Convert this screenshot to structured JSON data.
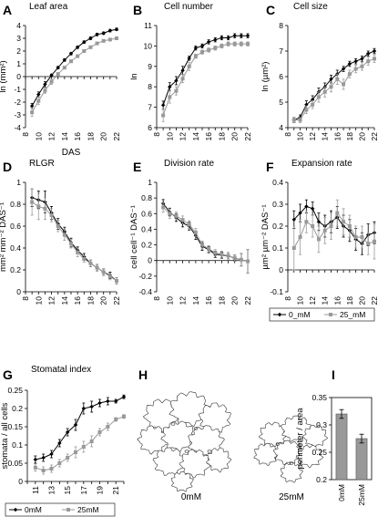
{
  "chart_data": [
    {
      "id": "A",
      "type": "line",
      "panel_letter": "A",
      "title": "Leaf area",
      "xlabel": "DAS",
      "ylabel": "ln (mm²)",
      "xlim": [
        8,
        22
      ],
      "ylim": [
        -4,
        4
      ],
      "xticks": [
        8,
        10,
        12,
        14,
        16,
        18,
        20,
        22
      ],
      "yticks": [
        -4,
        -3,
        -2,
        -1,
        0,
        1,
        2,
        3,
        4
      ],
      "series": [
        {
          "name": "0_mM",
          "x": [
            9,
            10,
            11,
            12,
            13,
            14,
            15,
            16,
            17,
            18,
            19,
            20,
            21,
            22
          ],
          "y": [
            -2.3,
            -1.4,
            -0.6,
            0.1,
            0.7,
            1.3,
            1.8,
            2.3,
            2.7,
            3.0,
            3.3,
            3.4,
            3.6,
            3.7
          ],
          "err": [
            0.2,
            0.2,
            0.2,
            0.1,
            0.1,
            0.1,
            0.1,
            0.1,
            0.1,
            0.1,
            0.1,
            0.1,
            0.1,
            0.1
          ]
        },
        {
          "name": "25_mM",
          "x": [
            9,
            10,
            11,
            12,
            13,
            14,
            15,
            16,
            17,
            18,
            19,
            20,
            21,
            22
          ],
          "y": [
            -2.8,
            -1.9,
            -1.1,
            -0.4,
            0.2,
            0.7,
            1.2,
            1.6,
            2.0,
            2.3,
            2.6,
            2.8,
            2.9,
            3.0
          ],
          "err": [
            0.3,
            0.3,
            0.2,
            0.2,
            0.1,
            0.1,
            0.1,
            0.1,
            0.1,
            0.1,
            0.1,
            0.1,
            0.1,
            0.1
          ]
        }
      ]
    },
    {
      "id": "B",
      "type": "line",
      "panel_letter": "B",
      "title": "Cell number",
      "xlabel": "",
      "ylabel": "ln",
      "xlim": [
        8,
        22
      ],
      "ylim": [
        6,
        11
      ],
      "xticks": [
        8,
        10,
        12,
        14,
        16,
        18,
        20,
        22
      ],
      "yticks": [
        6,
        7,
        8,
        9,
        10,
        11
      ],
      "series": [
        {
          "name": "0_mM",
          "x": [
            9,
            10,
            11,
            12,
            13,
            14,
            15,
            16,
            17,
            18,
            19,
            20,
            21,
            22
          ],
          "y": [
            7.1,
            8.0,
            8.3,
            8.8,
            9.4,
            9.9,
            10.0,
            10.2,
            10.3,
            10.4,
            10.4,
            10.5,
            10.5,
            10.5
          ],
          "err": [
            0.2,
            0.2,
            0.2,
            0.2,
            0.1,
            0.1,
            0.1,
            0.1,
            0.1,
            0.1,
            0.1,
            0.1,
            0.1,
            0.1
          ]
        },
        {
          "name": "25_mM",
          "x": [
            9,
            10,
            11,
            12,
            13,
            14,
            15,
            16,
            17,
            18,
            19,
            20,
            21,
            22
          ],
          "y": [
            6.6,
            7.5,
            7.8,
            8.4,
            9.0,
            9.5,
            9.7,
            9.8,
            9.9,
            10.0,
            10.1,
            10.1,
            10.1,
            10.1
          ],
          "err": [
            0.3,
            0.3,
            0.2,
            0.2,
            0.2,
            0.1,
            0.1,
            0.1,
            0.1,
            0.1,
            0.1,
            0.1,
            0.1,
            0.1
          ]
        }
      ]
    },
    {
      "id": "C",
      "type": "line",
      "panel_letter": "C",
      "title": "Cell size",
      "xlabel": "",
      "ylabel": "ln (µm²)",
      "xlim": [
        8,
        22
      ],
      "ylim": [
        4,
        8
      ],
      "xticks": [
        8,
        10,
        12,
        14,
        16,
        18,
        20,
        22
      ],
      "yticks": [
        4,
        5,
        6,
        7,
        8
      ],
      "series": [
        {
          "name": "0_mM",
          "x": [
            9,
            10,
            11,
            12,
            13,
            14,
            15,
            16,
            17,
            18,
            19,
            20,
            21,
            22
          ],
          "y": [
            4.3,
            4.4,
            4.9,
            5.1,
            5.4,
            5.6,
            5.9,
            6.1,
            6.3,
            6.5,
            6.6,
            6.7,
            6.9,
            7.0
          ],
          "err": [
            0.1,
            0.1,
            0.15,
            0.15,
            0.15,
            0.15,
            0.15,
            0.15,
            0.1,
            0.1,
            0.1,
            0.1,
            0.1,
            0.1
          ]
        },
        {
          "name": "25_mM",
          "x": [
            9,
            10,
            11,
            12,
            13,
            14,
            15,
            16,
            17,
            18,
            19,
            20,
            21,
            22
          ],
          "y": [
            4.3,
            4.3,
            4.7,
            4.9,
            5.2,
            5.4,
            5.6,
            5.9,
            5.7,
            6.1,
            6.3,
            6.4,
            6.6,
            6.7
          ],
          "err": [
            0.1,
            0.1,
            0.15,
            0.15,
            0.2,
            0.2,
            0.2,
            0.2,
            0.2,
            0.15,
            0.15,
            0.15,
            0.15,
            0.15
          ]
        }
      ]
    },
    {
      "id": "D",
      "type": "line",
      "panel_letter": "D",
      "title": "RLGR",
      "xlabel": "",
      "ylabel": "mm² mm⁻² DAS⁻¹",
      "xlim": [
        8,
        22
      ],
      "ylim": [
        0,
        1
      ],
      "xticks": [
        8,
        10,
        12,
        14,
        16,
        18,
        20,
        22
      ],
      "yticks": [
        0,
        0.2,
        0.4,
        0.6,
        0.8,
        1
      ],
      "series": [
        {
          "name": "0_mM",
          "x": [
            9,
            10,
            11,
            12,
            13,
            14,
            15,
            16,
            17,
            18,
            19,
            20,
            21,
            22
          ],
          "y": [
            0.86,
            0.84,
            0.82,
            0.72,
            0.62,
            0.55,
            0.45,
            0.38,
            0.32,
            0.26,
            0.22,
            0.18,
            0.15,
            0.1
          ],
          "err": [
            0.08,
            0.08,
            0.1,
            0.06,
            0.05,
            0.04,
            0.04,
            0.03,
            0.03,
            0.03,
            0.03,
            0.03,
            0.03,
            0.03
          ]
        },
        {
          "name": "25_mM",
          "x": [
            9,
            10,
            11,
            12,
            13,
            14,
            15,
            16,
            17,
            18,
            19,
            20,
            21,
            22
          ],
          "y": [
            0.82,
            0.78,
            0.76,
            0.7,
            0.6,
            0.52,
            0.44,
            0.36,
            0.3,
            0.26,
            0.22,
            0.18,
            0.14,
            0.1
          ],
          "err": [
            0.12,
            0.12,
            0.1,
            0.06,
            0.05,
            0.05,
            0.04,
            0.04,
            0.03,
            0.03,
            0.03,
            0.03,
            0.03,
            0.03
          ]
        }
      ]
    },
    {
      "id": "E",
      "type": "line",
      "panel_letter": "E",
      "title": "Division rate",
      "xlabel": "",
      "ylabel": "cell cell⁻¹ DAS⁻¹",
      "xlim": [
        8,
        22
      ],
      "ylim": [
        -0.4,
        1
      ],
      "xticks": [
        8,
        10,
        12,
        14,
        16,
        18,
        20,
        22
      ],
      "yticks": [
        -0.4,
        -0.2,
        0,
        0.2,
        0.4,
        0.6,
        0.8,
        1
      ],
      "series": [
        {
          "name": "0_mM",
          "x": [
            9,
            10,
            11,
            12,
            13,
            14,
            15,
            16,
            17,
            18,
            19,
            20,
            21,
            22
          ],
          "y": [
            0.73,
            0.62,
            0.55,
            0.48,
            0.44,
            0.32,
            0.18,
            0.14,
            0.08,
            0.07,
            0.06,
            0.03,
            0.01,
            -0.01
          ],
          "err": [
            0.05,
            0.05,
            0.05,
            0.05,
            0.05,
            0.05,
            0.05,
            0.04,
            0.04,
            0.04,
            0.04,
            0.04,
            0.08,
            0.15
          ]
        },
        {
          "name": "25_mM",
          "x": [
            9,
            10,
            11,
            12,
            13,
            14,
            15,
            16,
            17,
            18,
            19,
            20,
            21,
            22
          ],
          "y": [
            0.68,
            0.6,
            0.57,
            0.52,
            0.46,
            0.36,
            0.2,
            0.15,
            0.1,
            0.08,
            0.06,
            0.03,
            0.01,
            -0.01
          ],
          "err": [
            0.06,
            0.06,
            0.05,
            0.05,
            0.05,
            0.05,
            0.05,
            0.04,
            0.04,
            0.04,
            0.04,
            0.04,
            0.08,
            0.15
          ]
        }
      ]
    },
    {
      "id": "F",
      "type": "line",
      "panel_letter": "F",
      "title": "Expansion rate",
      "xlabel": "",
      "ylabel": "µm² µm⁻² DAS⁻¹",
      "xlim": [
        8,
        22
      ],
      "ylim": [
        -0.1,
        0.4
      ],
      "xticks": [
        8,
        10,
        12,
        14,
        16,
        18,
        20,
        22
      ],
      "yticks": [
        -0.1,
        0,
        0.1,
        0.2,
        0.3,
        0.4
      ],
      "series": [
        {
          "name": "0_mM",
          "x": [
            9,
            10,
            11,
            12,
            13,
            14,
            15,
            16,
            17,
            18,
            19,
            20,
            21,
            22
          ],
          "y": [
            0.23,
            0.26,
            0.29,
            0.28,
            0.22,
            0.2,
            0.22,
            0.24,
            0.2,
            0.18,
            0.14,
            0.12,
            0.16,
            0.17
          ],
          "err": [
            0.04,
            0.04,
            0.03,
            0.03,
            0.04,
            0.05,
            0.05,
            0.05,
            0.05,
            0.05,
            0.05,
            0.05,
            0.05,
            0.05
          ]
        },
        {
          "name": "25_mM",
          "x": [
            9,
            10,
            11,
            12,
            13,
            14,
            15,
            16,
            17,
            18,
            19,
            20,
            21,
            22
          ],
          "y": [
            0.1,
            0.15,
            0.22,
            0.2,
            0.14,
            0.18,
            0.2,
            0.26,
            0.22,
            0.2,
            0.15,
            0.15,
            0.12,
            0.13
          ],
          "err": [
            0.1,
            0.08,
            0.05,
            0.05,
            0.06,
            0.06,
            0.06,
            0.06,
            0.06,
            0.05,
            0.05,
            0.05,
            0.05,
            0.08
          ]
        }
      ],
      "legend": {
        "placement": "bottom",
        "entries": [
          "0_mM",
          "25_mM"
        ]
      }
    },
    {
      "id": "G",
      "type": "line",
      "panel_letter": "G",
      "title": "Stomatal index",
      "xlabel": "",
      "ylabel": "stomata / all cells",
      "xlim": [
        10,
        22
      ],
      "ylim": [
        0,
        0.25
      ],
      "xticks": [
        11,
        13,
        15,
        17,
        19,
        21
      ],
      "yticks": [
        0,
        0.05,
        0.1,
        0.15,
        0.2,
        0.25
      ],
      "series": [
        {
          "name": "0mM",
          "x": [
            11,
            12,
            13,
            14,
            15,
            16,
            17,
            18,
            19,
            20,
            21,
            22
          ],
          "y": [
            0.06,
            0.065,
            0.075,
            0.105,
            0.135,
            0.155,
            0.2,
            0.205,
            0.215,
            0.22,
            0.22,
            0.232
          ],
          "err": [
            0.01,
            0.01,
            0.01,
            0.01,
            0.01,
            0.015,
            0.015,
            0.015,
            0.01,
            0.01,
            0.005,
            0.005
          ]
        },
        {
          "name": "25mM",
          "x": [
            11,
            12,
            13,
            14,
            15,
            16,
            17,
            18,
            19,
            20,
            21,
            22
          ],
          "y": [
            0.038,
            0.03,
            0.035,
            0.05,
            0.065,
            0.08,
            0.095,
            0.11,
            0.135,
            0.15,
            0.17,
            0.178
          ],
          "err": [
            0.01,
            0.01,
            0.01,
            0.01,
            0.01,
            0.015,
            0.015,
            0.015,
            0.01,
            0.01,
            0.005,
            0.005
          ]
        }
      ],
      "legend": {
        "placement": "bottom",
        "entries": [
          "0mM",
          "25mM"
        ]
      }
    },
    {
      "id": "H",
      "type": "image",
      "panel_letter": "H",
      "labels": [
        "0mM",
        "25mM"
      ]
    },
    {
      "id": "I",
      "type": "bar",
      "panel_letter": "I",
      "ylabel": "perimeter / area",
      "categories": [
        "0mM",
        "25mM"
      ],
      "values": [
        0.32,
        0.275
      ],
      "err": [
        0.008,
        0.008
      ],
      "ylim": [
        0.2,
        0.35
      ],
      "yticks": [
        0.2,
        0.25,
        0.3,
        0.35
      ]
    }
  ],
  "colors": {
    "series_0": "#000000",
    "series_25": "#999999",
    "bars": "#999999",
    "axis": "#000000"
  }
}
